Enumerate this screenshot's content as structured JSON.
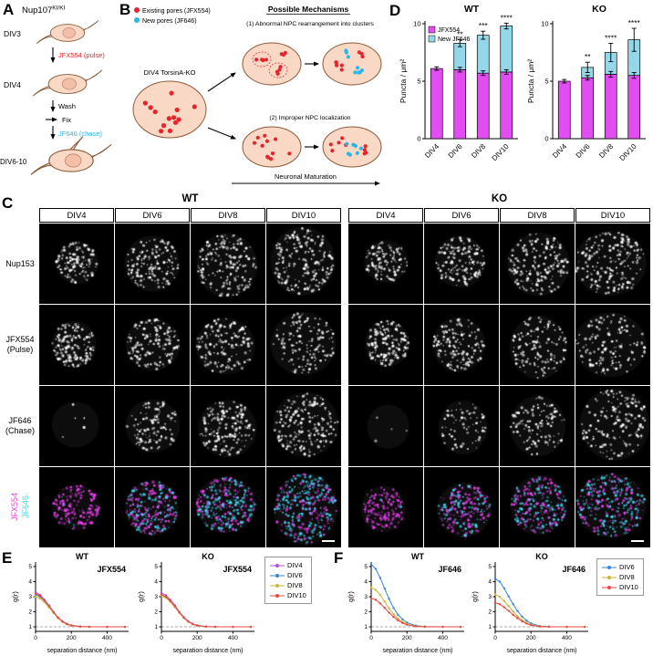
{
  "panels": {
    "A": "A",
    "B": "B",
    "C": "C",
    "D": "D",
    "E": "E",
    "F": "F"
  },
  "colors": {
    "existing_red": "#e8232a",
    "new_cyan": "#2bb7e5",
    "jfx554_magenta": "#e24df2",
    "jf646_cyan_bar": "#93d7e8",
    "merge_magenta": "#ef3ff5",
    "merge_cyan": "#41d8f5",
    "cell_fill": "#f9d8c6",
    "cell_stroke": "#8a5a38",
    "nucleus_fill": "#f2bfa8",
    "nucleus_stroke": "#c08868"
  },
  "panelA": {
    "gene": "Nup107",
    "gene_sup": "KI/KI",
    "div1": "DIV3",
    "div2": "DIV4",
    "div3": "DIV6-10",
    "pulse_label": "JFX554 (pulse)",
    "wash_label": "Wash",
    "fix_label": "Fix",
    "chase_label": "JF646 (chase)"
  },
  "panelB": {
    "legend_existing": "Existing pores (JFX554)",
    "legend_new": "New pores (JF646)",
    "heading": "Possible Mechanisms",
    "start_label": "DIV4 TorsinA-KO",
    "mech1": "(1) Abnormal NPC rearrangement into clusters",
    "mech2": "(2) Improper NPC localization",
    "maturation": "Neuronal Maturation"
  },
  "panelC": {
    "groups": [
      {
        "name": "WT",
        "columns": [
          "DIV4",
          "DIV6",
          "DIV8",
          "DIV10"
        ]
      },
      {
        "name": "KO",
        "columns": [
          "DIV4",
          "DIV6",
          "DIV8",
          "DIV10"
        ]
      }
    ],
    "row_labels": [
      [
        "Nup153"
      ],
      [
        "JFX554",
        "(Pulse)"
      ],
      [
        "JF646",
        "(Chase)"
      ]
    ],
    "merge_labels": [
      {
        "text": "JFX554",
        "color": "#ef3ff5"
      },
      {
        "text": "JF646",
        "color": "#41d8f5"
      }
    ],
    "render": {
      "radii": [
        25,
        29,
        33,
        37
      ],
      "rows": [
        {
          "key": "nup153",
          "layers": [
            {
              "color": "#ffffff",
              "wt": [
                120,
                150,
                170,
                185
              ],
              "ko": [
                115,
                145,
                165,
                180
              ]
            }
          ]
        },
        {
          "key": "jfx554-pulse",
          "layers": [
            {
              "color": "#ffffff",
              "wt": [
                150,
                150,
                145,
                140
              ],
              "ko": [
                140,
                140,
                135,
                130
              ]
            }
          ]
        },
        {
          "key": "jf646-chase",
          "layers": [
            {
              "color": "#ffffff",
              "wt": [
                5,
                110,
                155,
                195
              ],
              "ko": [
                4,
                70,
                115,
                155
              ]
            }
          ]
        },
        {
          "key": "merge",
          "layers": [
            {
              "color": "#ef3ff5",
              "wt": [
                150,
                150,
                145,
                140
              ],
              "ko": [
                140,
                140,
                135,
                130
              ]
            },
            {
              "color": "#41d8f5",
              "wt": [
                5,
                110,
                155,
                195
              ],
              "ko": [
                4,
                70,
                115,
                155
              ]
            }
          ]
        }
      ]
    }
  },
  "chart_data": [
    {
      "id": "D-WT",
      "panel": "D",
      "type": "bar",
      "title": "WT",
      "ylabel": "Puncta / μm²",
      "ylim": [
        0,
        10
      ],
      "yticks": [
        0,
        5,
        10
      ],
      "categories": [
        "DIV4",
        "DIV6",
        "DIV8",
        "DIV10"
      ],
      "series": [
        {
          "name": "JFX554",
          "color": "#e24df2",
          "values": [
            6.1,
            6.0,
            5.7,
            5.8
          ],
          "errors": [
            0.15,
            0.2,
            0.2,
            0.2
          ]
        },
        {
          "name": "New JF646",
          "color": "#93d7e8",
          "values": [
            0,
            2.3,
            3.3,
            4.0
          ],
          "errors": [
            0,
            0.3,
            0.35,
            0.25
          ]
        }
      ],
      "significance": [
        "",
        "**",
        "***",
        "****"
      ],
      "legend": true
    },
    {
      "id": "D-KO",
      "panel": "D",
      "type": "bar",
      "title": "KO",
      "ylabel": "Puncta / μm²",
      "ylim": [
        0,
        10
      ],
      "yticks": [
        0,
        5,
        10
      ],
      "categories": [
        "DIV4",
        "DIV6",
        "DIV8",
        "DIV10"
      ],
      "series": [
        {
          "name": "JFX554",
          "color": "#e24df2",
          "values": [
            5.0,
            5.3,
            5.6,
            5.5
          ],
          "errors": [
            0.15,
            0.2,
            0.25,
            0.25
          ]
        },
        {
          "name": "New JF646",
          "color": "#93d7e8",
          "values": [
            0,
            0.9,
            1.9,
            3.1
          ],
          "errors": [
            0,
            0.45,
            0.8,
            1.0
          ]
        }
      ],
      "significance": [
        "",
        "**",
        "****",
        "****"
      ],
      "legend": false
    },
    {
      "id": "E-WT",
      "panel": "E",
      "type": "line",
      "title": "WT",
      "annotation": "JFX554",
      "xlabel": "separation distance (nm)",
      "ylabel": "g(r)",
      "xlim": [
        0,
        520
      ],
      "ylim": [
        0.7,
        5.3
      ],
      "xticks": [
        0,
        200,
        400
      ],
      "yticks": [
        1,
        2,
        3,
        4,
        5
      ],
      "baseline": 1,
      "x": [
        0,
        25,
        50,
        75,
        100,
        125,
        150,
        175,
        200,
        250,
        300,
        400,
        500
      ],
      "series": [
        {
          "name": "DIV4",
          "color": "#b44fd6",
          "y": [
            3.3,
            3.12,
            2.8,
            2.42,
            2.0,
            1.63,
            1.37,
            1.2,
            1.1,
            1.02,
            1.0,
            1.0,
            1.0
          ]
        },
        {
          "name": "DIV6",
          "color": "#3a86d1",
          "y": [
            3.15,
            3.0,
            2.72,
            2.36,
            1.97,
            1.6,
            1.35,
            1.18,
            1.09,
            1.02,
            1.0,
            1.0,
            1.0
          ]
        },
        {
          "name": "DIV8",
          "color": "#ccb53d",
          "y": [
            3.0,
            2.88,
            2.62,
            2.28,
            1.92,
            1.57,
            1.33,
            1.17,
            1.08,
            1.01,
            1.0,
            1.0,
            1.0
          ]
        },
        {
          "name": "DIV10",
          "color": "#e8483f",
          "y": [
            3.2,
            3.05,
            2.76,
            2.4,
            1.98,
            1.62,
            1.36,
            1.19,
            1.09,
            1.02,
            1.0,
            1.0,
            1.0
          ]
        }
      ]
    },
    {
      "id": "E-KO",
      "panel": "E",
      "type": "line",
      "title": "KO",
      "annotation": "JFX554",
      "xlabel": "separation distance (nm)",
      "ylabel": "g(r)",
      "xlim": [
        0,
        520
      ],
      "ylim": [
        0.7,
        5.3
      ],
      "xticks": [
        0,
        200,
        400
      ],
      "yticks": [
        1,
        2,
        3,
        4,
        5
      ],
      "baseline": 1,
      "x": [
        0,
        25,
        50,
        75,
        100,
        125,
        150,
        175,
        200,
        250,
        300,
        400,
        500
      ],
      "series": [
        {
          "name": "DIV4",
          "color": "#b44fd6",
          "y": [
            3.25,
            3.1,
            2.8,
            2.43,
            2.0,
            1.64,
            1.38,
            1.2,
            1.1,
            1.02,
            1.0,
            1.0,
            1.0
          ]
        },
        {
          "name": "DIV6",
          "color": "#3a86d1",
          "y": [
            3.1,
            2.97,
            2.7,
            2.35,
            1.96,
            1.6,
            1.35,
            1.18,
            1.08,
            1.01,
            1.0,
            1.0,
            1.0
          ]
        },
        {
          "name": "DIV8",
          "color": "#ccb53d",
          "y": [
            3.05,
            2.92,
            2.65,
            2.3,
            1.93,
            1.58,
            1.34,
            1.17,
            1.08,
            1.01,
            1.0,
            1.0,
            1.0
          ]
        },
        {
          "name": "DIV10",
          "color": "#e8483f",
          "y": [
            3.15,
            3.0,
            2.73,
            2.38,
            1.97,
            1.61,
            1.35,
            1.18,
            1.09,
            1.02,
            1.0,
            1.0,
            1.0
          ]
        }
      ]
    },
    {
      "id": "F-WT",
      "panel": "F",
      "type": "line",
      "title": "WT",
      "annotation": "JF646",
      "xlabel": "separation distance (nm)",
      "ylabel": "g(r)",
      "xlim": [
        0,
        520
      ],
      "ylim": [
        0.7,
        5.3
      ],
      "xticks": [
        0,
        200,
        400
      ],
      "yticks": [
        1,
        2,
        3,
        4,
        5
      ],
      "baseline": 1,
      "x": [
        0,
        25,
        50,
        75,
        100,
        125,
        150,
        175,
        200,
        250,
        300,
        400,
        500
      ],
      "series": [
        {
          "name": "DIV6",
          "color": "#3a86d1",
          "y": [
            5.15,
            4.85,
            4.25,
            3.55,
            2.85,
            2.25,
            1.8,
            1.5,
            1.28,
            1.08,
            1.02,
            1.0,
            1.0
          ]
        },
        {
          "name": "DIV8",
          "color": "#ccb53d",
          "y": [
            3.6,
            3.45,
            3.12,
            2.68,
            2.22,
            1.84,
            1.54,
            1.32,
            1.18,
            1.04,
            1.01,
            1.0,
            1.0
          ]
        },
        {
          "name": "DIV10",
          "color": "#e8483f",
          "y": [
            2.9,
            2.8,
            2.56,
            2.26,
            1.94,
            1.66,
            1.43,
            1.26,
            1.14,
            1.03,
            1.0,
            1.0,
            1.0
          ]
        }
      ]
    },
    {
      "id": "F-KO",
      "panel": "F",
      "type": "line",
      "title": "KO",
      "annotation": "JF646",
      "xlabel": "separation distance (nm)",
      "ylabel": "g(r)",
      "xlim": [
        0,
        520
      ],
      "ylim": [
        0.7,
        5.3
      ],
      "xticks": [
        0,
        200,
        400
      ],
      "yticks": [
        1,
        2,
        3,
        4,
        5
      ],
      "baseline": 1,
      "x": [
        0,
        25,
        50,
        75,
        100,
        125,
        150,
        175,
        200,
        250,
        300,
        400,
        500
      ],
      "series": [
        {
          "name": "DIV6",
          "color": "#3a86d1",
          "y": [
            4.2,
            4.0,
            3.55,
            3.02,
            2.5,
            2.05,
            1.68,
            1.42,
            1.23,
            1.05,
            1.01,
            1.0,
            1.0
          ]
        },
        {
          "name": "DIV8",
          "color": "#ccb53d",
          "y": [
            3.15,
            3.0,
            2.72,
            2.38,
            2.02,
            1.7,
            1.45,
            1.27,
            1.14,
            1.03,
            1.0,
            1.0,
            1.0
          ]
        },
        {
          "name": "DIV10",
          "color": "#e8483f",
          "y": [
            2.6,
            2.5,
            2.3,
            2.06,
            1.8,
            1.57,
            1.37,
            1.22,
            1.11,
            1.02,
            1.0,
            1.0,
            1.0
          ]
        }
      ]
    }
  ]
}
